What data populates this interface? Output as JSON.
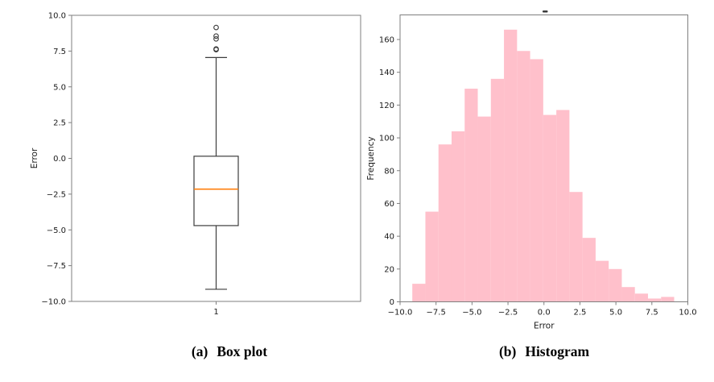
{
  "captions": {
    "a_label": "(a)",
    "a_text": "Box plot",
    "b_label": "(b)",
    "b_text": "Histogram"
  },
  "chart_data": [
    {
      "type": "boxplot",
      "title": "",
      "xlabel": "",
      "ylabel": "Error",
      "categories": [
        "1"
      ],
      "ylim": [
        -10.0,
        10.0
      ],
      "yticks": [
        -10.0,
        -7.5,
        -5.0,
        -2.5,
        0.0,
        2.5,
        5.0,
        7.5,
        10.0
      ],
      "ytick_labels": [
        "−10.0",
        "−7.5",
        "−5.0",
        "−2.5",
        "0.0",
        "2.5",
        "5.0",
        "7.5",
        "10.0"
      ],
      "box": {
        "whisker_low": -9.15,
        "q1": -4.7,
        "median": -2.15,
        "q3": 0.15,
        "whisker_high": 7.05,
        "outliers": [
          7.6,
          7.65,
          8.35,
          8.55,
          9.15
        ]
      },
      "colors": {
        "median": "#ff7f0e",
        "line": "#3c3c3c",
        "box_fill": "#ffffff",
        "spine": "#7f7f7f"
      },
      "grid": false,
      "legend": null
    },
    {
      "type": "histogram",
      "title": "",
      "xlabel": "Error",
      "ylabel": "Frequency",
      "xlim": [
        -10.0,
        10.0
      ],
      "ylim": [
        0,
        175
      ],
      "xticks": [
        -10.0,
        -7.5,
        -5.0,
        -2.5,
        0.0,
        2.5,
        5.0,
        7.5,
        10.0
      ],
      "xtick_labels": [
        "−10.0",
        "−7.5",
        "−5.0",
        "−2.5",
        "0.0",
        "2.5",
        "5.0",
        "7.5",
        "10.0"
      ],
      "yticks": [
        0,
        20,
        40,
        60,
        80,
        100,
        120,
        140,
        160
      ],
      "ytick_labels": [
        "0",
        "20",
        "40",
        "60",
        "80",
        "100",
        "120",
        "140",
        "160"
      ],
      "bin_start": -9.15,
      "bin_width": 0.91,
      "frequencies": [
        11,
        55,
        96,
        104,
        130,
        113,
        136,
        166,
        153,
        148,
        114,
        117,
        67,
        39,
        25,
        20,
        9,
        5,
        2,
        3
      ],
      "colors": {
        "bar": "#ffc0cb",
        "spine": "#7f7f7f",
        "top_mark": "#3a3a3a"
      },
      "grid": false,
      "legend": null
    }
  ]
}
